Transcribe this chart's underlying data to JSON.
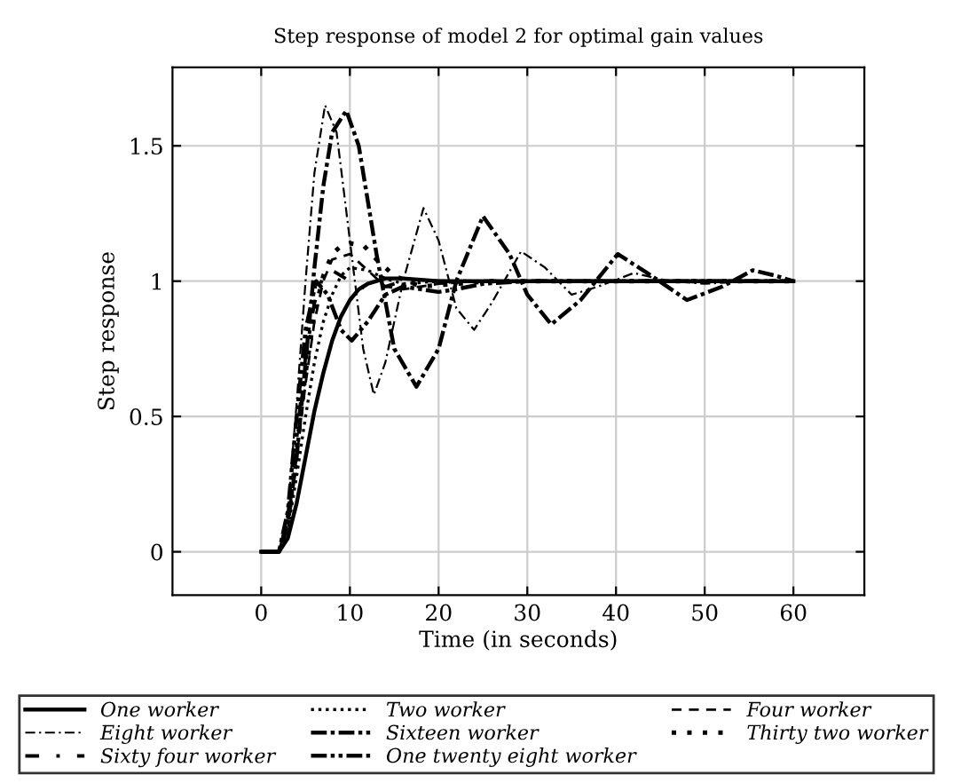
{
  "chart_data": {
    "type": "line",
    "title": "Step response of model 2 for optimal gain values",
    "xlabel": "Time (in seconds)",
    "ylabel": "Step response",
    "xlim": [
      -10,
      68
    ],
    "ylim": [
      -0.16,
      1.79
    ],
    "xticks": [
      0,
      10,
      20,
      30,
      40,
      50,
      60
    ],
    "yticks": [
      0,
      0.5,
      1,
      1.5
    ],
    "grid": true,
    "legend": "bottom",
    "marker": "none",
    "series": [
      {
        "name": "One worker",
        "color": "#000000",
        "line_style": "solid",
        "x": [
          0,
          2,
          3,
          4,
          5,
          6,
          7,
          8,
          9,
          10,
          11,
          12,
          14,
          16,
          20,
          30,
          60
        ],
        "values": [
          0,
          0,
          0.05,
          0.18,
          0.35,
          0.52,
          0.66,
          0.78,
          0.87,
          0.93,
          0.97,
          0.99,
          1.01,
          1.01,
          1.0,
          1.0,
          1.0
        ]
      },
      {
        "name": "Two worker",
        "color": "#000000",
        "line_style": "dotted",
        "x": [
          0,
          2,
          3,
          4,
          5,
          6,
          7,
          8,
          9,
          10,
          12,
          14,
          16,
          20,
          30,
          60
        ],
        "values": [
          0,
          0,
          0.08,
          0.28,
          0.5,
          0.7,
          0.85,
          0.95,
          1.02,
          1.05,
          1.04,
          1.01,
          0.99,
          1.0,
          1.0,
          1.0
        ]
      },
      {
        "name": "Four worker",
        "color": "#000000",
        "line_style": "dashed",
        "x": [
          0,
          2,
          3,
          4,
          5,
          6,
          7,
          8,
          10,
          12,
          14,
          16,
          20,
          25,
          30,
          60
        ],
        "values": [
          0,
          0,
          0.1,
          0.35,
          0.62,
          0.85,
          1.0,
          1.08,
          1.1,
          1.04,
          0.98,
          0.97,
          0.99,
          1.0,
          1.0,
          1.0
        ]
      },
      {
        "name": "Eight worker",
        "color": "#000000",
        "line_style": "dashdot",
        "x": [
          0,
          2,
          3,
          4,
          5,
          6,
          7.2,
          8.5,
          10,
          11.5,
          12.7,
          14,
          16,
          18.3,
          20,
          22,
          24,
          26,
          29.3,
          32,
          35,
          38,
          42,
          46,
          50,
          55,
          60
        ],
        "values": [
          0,
          0,
          0.15,
          0.55,
          1.0,
          1.4,
          1.65,
          1.55,
          1.15,
          0.75,
          0.58,
          0.7,
          1.0,
          1.27,
          1.15,
          0.9,
          0.82,
          0.92,
          1.11,
          1.05,
          0.95,
          0.98,
          1.03,
          1.0,
          0.99,
          1.0,
          1.0
        ]
      },
      {
        "name": "Sixteen worker",
        "color": "#000000",
        "line_style": "densely dashdotted",
        "x": [
          0,
          2,
          3,
          4,
          5,
          6,
          7,
          8,
          9.6,
          11,
          13,
          15,
          17.5,
          20,
          22,
          25,
          28,
          30,
          32.7,
          36,
          40.2,
          44,
          48,
          52,
          55.4,
          58,
          60
        ],
        "values": [
          0,
          0,
          0.1,
          0.35,
          0.7,
          1.05,
          1.35,
          1.55,
          1.63,
          1.5,
          1.1,
          0.75,
          0.61,
          0.75,
          1.0,
          1.24,
          1.1,
          0.95,
          0.84,
          0.93,
          1.1,
          1.02,
          0.93,
          0.98,
          1.04,
          1.02,
          1.0
        ]
      },
      {
        "name": "Thirty two worker",
        "color": "#000000",
        "line_style": "loosely dotted",
        "x": [
          0,
          2,
          3,
          4,
          5,
          6,
          7,
          8,
          9,
          10,
          11.6,
          13,
          15,
          18,
          22,
          26,
          30,
          60
        ],
        "values": [
          0,
          0,
          0.1,
          0.38,
          0.66,
          0.88,
          1.02,
          1.1,
          1.13,
          1.14,
          1.13,
          1.08,
          1.02,
          0.98,
          0.99,
          1.0,
          1.0,
          1.0
        ]
      },
      {
        "name": "Sixty four worker",
        "color": "#000000",
        "line_style": "loosely dashdotted",
        "x": [
          0,
          2,
          3,
          4,
          5,
          6,
          7,
          8,
          10,
          12,
          14,
          16,
          20,
          25,
          30,
          60
        ],
        "values": [
          0,
          0,
          0.12,
          0.42,
          0.72,
          0.92,
          1.02,
          1.04,
          1.0,
          0.97,
          0.98,
          1.0,
          1.0,
          1.0,
          1.0,
          1.0
        ]
      },
      {
        "name": "One twenty eight worker",
        "color": "#000000",
        "line_style": "densely dashdotdotted",
        "x": [
          0,
          2,
          3,
          4,
          5,
          6.2,
          7.5,
          9,
          10.2,
          12,
          14,
          16,
          18,
          20,
          22,
          25,
          30,
          60
        ],
        "values": [
          0,
          0,
          0.15,
          0.5,
          0.82,
          1.0,
          0.95,
          0.82,
          0.78,
          0.85,
          0.95,
          0.98,
          0.97,
          0.96,
          0.97,
          0.99,
          1.0,
          1.0
        ]
      }
    ]
  }
}
